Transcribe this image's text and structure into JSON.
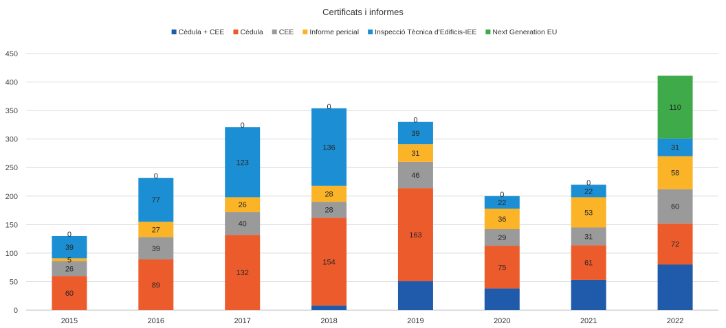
{
  "chart_data": {
    "type": "bar",
    "stacked": true,
    "title": "Certificats i informes",
    "xlabel": "",
    "ylabel": "",
    "ylim": [
      0,
      450
    ],
    "yticks": [
      0,
      50,
      100,
      150,
      200,
      250,
      300,
      350,
      400,
      450
    ],
    "grid": true,
    "legend_position": "top",
    "categories": [
      "2015",
      "2016",
      "2017",
      "2018",
      "2019",
      "2020",
      "2021",
      "2022"
    ],
    "series": [
      {
        "name": "Cèdula + CEE",
        "color": "#1F5BAA",
        "values": [
          0,
          0,
          0,
          8,
          51,
          38,
          53,
          80
        ],
        "labels": [
          null,
          null,
          null,
          null,
          null,
          null,
          null,
          null
        ]
      },
      {
        "name": "Cèdula",
        "color": "#EC5B2C",
        "values": [
          60,
          89,
          132,
          154,
          163,
          75,
          61,
          72
        ],
        "labels": [
          "60",
          "89",
          "132",
          "154",
          "163",
          "75",
          "61",
          "72"
        ]
      },
      {
        "name": "CEE",
        "color": "#9A9A9A",
        "values": [
          26,
          39,
          40,
          28,
          46,
          29,
          31,
          60
        ],
        "labels": [
          "26",
          "39",
          "40",
          "28",
          "46",
          "29",
          "31",
          "60"
        ]
      },
      {
        "name": "Informe pericial",
        "color": "#FBB427",
        "values": [
          5,
          27,
          26,
          28,
          31,
          36,
          53,
          58
        ],
        "labels": [
          "5",
          "27",
          "26",
          "28",
          "31",
          "36",
          "53",
          "58"
        ]
      },
      {
        "name": "Inspecció Tècnica d'Edificis-IEE",
        "color": "#1C8FD4",
        "values": [
          39,
          77,
          123,
          136,
          39,
          22,
          22,
          31
        ],
        "labels": [
          "39",
          "77",
          "123",
          "136",
          "39",
          "22",
          "22",
          "31"
        ]
      },
      {
        "name": "Next Generation EU",
        "color": "#3EAA4A",
        "values": [
          0,
          0,
          0,
          0,
          0,
          0,
          0,
          110
        ],
        "labels": [
          "0",
          "0",
          "0",
          "0",
          "0",
          "0",
          "0",
          "110"
        ]
      }
    ]
  }
}
